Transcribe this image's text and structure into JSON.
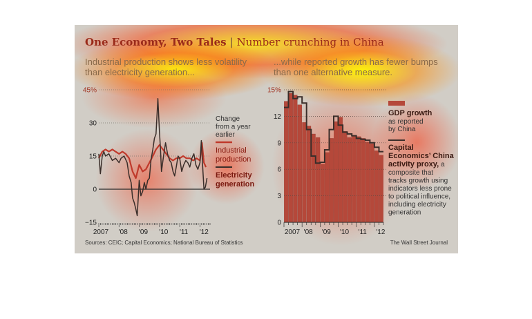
{
  "header": {
    "title_main": "One Economy, Two Tales",
    "title_separator": "|",
    "title_sub": "Number crunching in China"
  },
  "left_subtitle": "Industrial production shows less volatility than electricity generation...",
  "right_subtitle": "...while reported growth has fewer bumps than one alternative measure.",
  "sources": "Sources: CEIC; Capital Economics; National Bureau of Statistics",
  "credit": "The Wall Street Journal",
  "colors": {
    "red_series": "#c0392b",
    "dark_series": "#3a2e2a",
    "bar_fill": "#b5483a",
    "zero_line": "#2a2a2a"
  },
  "chart_data": [
    {
      "type": "line",
      "legend_note": [
        "Change",
        "from a year",
        "earlier"
      ],
      "x_ticks": [
        "2007",
        "'08",
        "'09",
        "'10",
        "'11",
        "'12"
      ],
      "y_ticks": [
        "45%",
        "30",
        "15",
        "0",
        "−15"
      ],
      "ylim": [
        -15,
        45
      ],
      "xlim": [
        2007.0,
        2012.5
      ],
      "series": [
        {
          "name": "Industrial production",
          "label_lines": [
            "Industrial",
            "production"
          ],
          "color": "#c0392b",
          "x": [
            2007.0,
            2007.17,
            2007.33,
            2007.5,
            2007.67,
            2007.83,
            2008.0,
            2008.17,
            2008.33,
            2008.5,
            2008.67,
            2008.83,
            2009.0,
            2009.17,
            2009.33,
            2009.5,
            2009.67,
            2009.83,
            2010.0,
            2010.17,
            2010.33,
            2010.5,
            2010.67,
            2010.83,
            2011.0,
            2011.17,
            2011.33,
            2011.5,
            2011.67,
            2011.83,
            2012.0,
            2012.1,
            2012.2,
            2012.3
          ],
          "y": [
            14,
            17,
            18,
            17,
            18,
            17,
            16,
            17,
            16,
            14,
            8,
            5,
            11,
            8,
            9,
            12,
            15,
            18,
            20,
            18,
            16,
            14,
            13,
            14,
            14,
            15,
            14,
            14,
            13,
            14,
            13,
            21,
            12,
            10
          ]
        },
        {
          "name": "Electricity generation",
          "label_lines": [
            "Electricity",
            "generation"
          ],
          "color": "#3a2e2a",
          "x": [
            2007.0,
            2007.08,
            2007.17,
            2007.25,
            2007.33,
            2007.5,
            2007.67,
            2007.83,
            2008.0,
            2008.1,
            2008.25,
            2008.4,
            2008.5,
            2008.6,
            2008.67,
            2008.75,
            2008.83,
            2008.9,
            2009.0,
            2009.08,
            2009.17,
            2009.25,
            2009.33,
            2009.42,
            2009.5,
            2009.58,
            2009.67,
            2009.75,
            2009.83,
            2009.92,
            2010.0,
            2010.05,
            2010.1,
            2010.2,
            2010.3,
            2010.4,
            2010.5,
            2010.58,
            2010.67,
            2010.75,
            2010.83,
            2010.92,
            2011.0,
            2011.1,
            2011.2,
            2011.3,
            2011.4,
            2011.5,
            2011.6,
            2011.7,
            2011.8,
            2011.9,
            2012.0,
            2012.07,
            2012.13,
            2012.2,
            2012.27,
            2012.35
          ],
          "y": [
            16,
            7,
            15,
            17,
            15,
            16,
            13,
            14,
            12,
            14,
            15,
            12,
            6,
            3,
            -4,
            -6,
            -9,
            -12,
            4,
            -3,
            -1,
            3,
            0,
            4,
            5,
            13,
            18,
            23,
            25,
            41,
            26,
            18,
            8,
            15,
            21,
            16,
            13,
            12,
            8,
            6,
            10,
            15,
            14,
            8,
            11,
            13,
            12,
            10,
            14,
            16,
            11,
            9,
            12,
            22,
            11,
            0,
            1,
            5
          ]
        }
      ]
    },
    {
      "type": "bar",
      "x_ticks": [
        "2007",
        "'08",
        "'09",
        "'10",
        "'11",
        "'12"
      ],
      "y_ticks": [
        "15%",
        "12",
        "9",
        "6",
        "3",
        "0"
      ],
      "ylim": [
        0,
        15
      ],
      "categories": [
        "2007Q1",
        "2007Q2",
        "2007Q3",
        "2007Q4",
        "2008Q1",
        "2008Q2",
        "2008Q3",
        "2008Q4",
        "2009Q1",
        "2009Q2",
        "2009Q3",
        "2009Q4",
        "2010Q1",
        "2010Q2",
        "2010Q3",
        "2010Q4",
        "2011Q1",
        "2011Q2",
        "2011Q3",
        "2011Q4",
        "2012Q1",
        "2012Q2"
      ],
      "series": [
        {
          "name": "GDP growth",
          "label_lines": [
            "GDP growth"
          ],
          "note_lines": [
            "as reported",
            "by China"
          ],
          "color": "#b5483a",
          "values": [
            13.7,
            14.6,
            14.4,
            13.3,
            11.3,
            10.9,
            10.0,
            9.6,
            6.6,
            7.9,
            9.5,
            11.4,
            11.9,
            10.3,
            9.6,
            9.8,
            9.7,
            9.5,
            9.1,
            8.9,
            8.1,
            7.6
          ]
        },
        {
          "name": "Capital Economics' China activity proxy",
          "label_lines": [
            "Capital",
            "Economics’ China",
            "activity proxy,"
          ],
          "note_lines": [
            "a",
            "composite that",
            "tracks growth using",
            "indicators less prone",
            "to political influence,",
            "including electricity",
            "generation"
          ],
          "color": "#3a2e2a",
          "values": [
            13.0,
            14.8,
            14.0,
            14.2,
            13.5,
            10.5,
            7.5,
            6.7,
            6.8,
            8.2,
            10.5,
            12.0,
            11.0,
            10.2,
            10.0,
            9.8,
            9.5,
            9.4,
            9.3,
            9.0,
            8.5,
            8.0
          ]
        }
      ]
    }
  ]
}
